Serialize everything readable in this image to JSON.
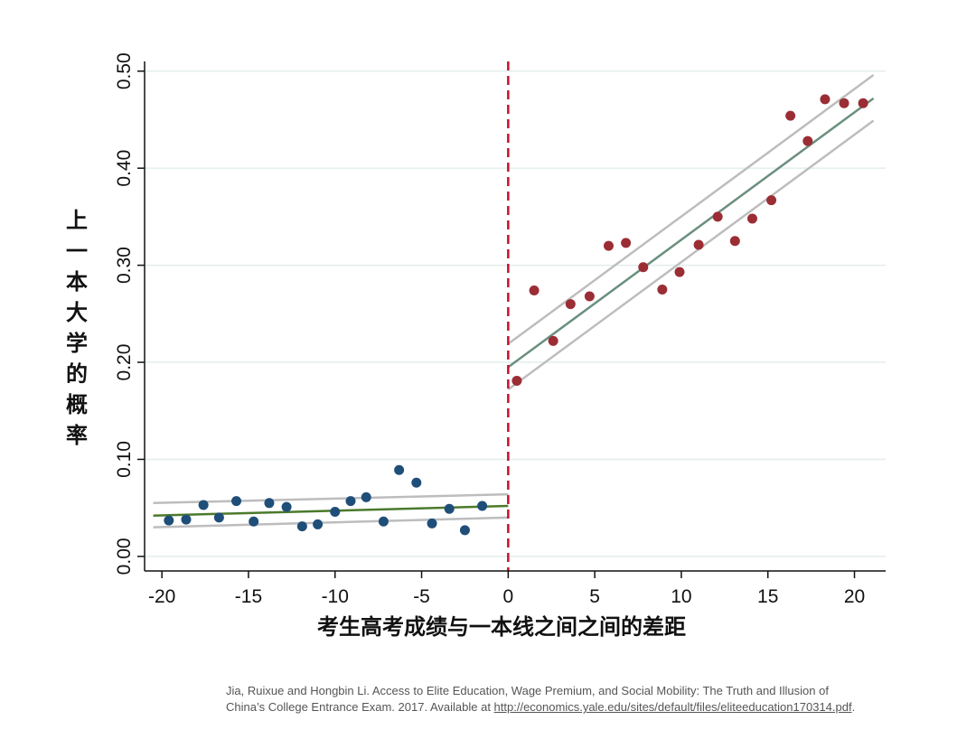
{
  "chart_data": {
    "type": "scatter",
    "title": "",
    "xlabel": "考生高考成绩与一本线之间之间的差距",
    "ylabel": "上一本大学的概率",
    "xlim": [
      -21,
      21.8
    ],
    "ylim": [
      -0.015,
      0.51
    ],
    "x_ticks": [
      -20,
      -15,
      -10,
      -5,
      0,
      5,
      10,
      15,
      20
    ],
    "x_tick_labels": [
      "-20",
      "-15",
      "-10",
      "-5",
      "0",
      "5",
      "10",
      "15",
      "20"
    ],
    "y_ticks": [
      0,
      0.1,
      0.2,
      0.3,
      0.4,
      0.5
    ],
    "y_tick_labels": [
      "0.00",
      "0.10",
      "0.20",
      "0.30",
      "0.40",
      "0.50"
    ],
    "grid": true,
    "cutoff_x": 0,
    "colors": {
      "below": "#1f4e79",
      "above": "#9b2d35",
      "fit_below": "#4b7a2c",
      "fit_above": "#6b8f7e",
      "ci": "#bdbdbd",
      "cutoff": "#c8102e",
      "grid": "#e3eeee"
    },
    "series": [
      {
        "points": [
          [
            -19.6,
            0.037
          ],
          [
            -18.6,
            0.038
          ],
          [
            -17.6,
            0.053
          ],
          [
            -16.7,
            0.04
          ],
          [
            -15.7,
            0.057
          ],
          [
            -14.7,
            0.036
          ],
          [
            -13.8,
            0.055
          ],
          [
            -12.8,
            0.051
          ],
          [
            -11.9,
            0.031
          ],
          [
            -11.0,
            0.033
          ],
          [
            -10.0,
            0.046
          ],
          [
            -9.1,
            0.057
          ],
          [
            -8.2,
            0.061
          ],
          [
            -7.2,
            0.036
          ],
          [
            -6.3,
            0.089
          ],
          [
            -5.3,
            0.076
          ],
          [
            -4.4,
            0.034
          ],
          [
            -3.4,
            0.049
          ],
          [
            -2.5,
            0.027
          ],
          [
            -1.5,
            0.052
          ]
        ]
      },
      {
        "points": [
          [
            0.5,
            0.181
          ],
          [
            1.5,
            0.274
          ],
          [
            2.6,
            0.222
          ],
          [
            3.6,
            0.26
          ],
          [
            4.7,
            0.268
          ],
          [
            5.8,
            0.32
          ],
          [
            6.8,
            0.323
          ],
          [
            7.8,
            0.298
          ],
          [
            8.9,
            0.275
          ],
          [
            9.9,
            0.293
          ],
          [
            11.0,
            0.321
          ],
          [
            12.1,
            0.35
          ],
          [
            13.1,
            0.325
          ],
          [
            14.1,
            0.348
          ],
          [
            15.2,
            0.367
          ],
          [
            16.3,
            0.454
          ],
          [
            17.3,
            0.428
          ],
          [
            18.3,
            0.471
          ],
          [
            19.4,
            0.467
          ],
          [
            20.5,
            0.467
          ]
        ]
      }
    ],
    "fit_lines": [
      {
        "x": [
          -20.5,
          0
        ],
        "y": [
          0.042,
          0.052
        ],
        "ci_upper": [
          0.055,
          0.064
        ],
        "ci_lower": [
          0.03,
          0.04
        ]
      },
      {
        "x": [
          0,
          21.1
        ],
        "y": [
          0.195,
          0.472
        ],
        "ci_upper": [
          0.219,
          0.496
        ],
        "ci_lower": [
          0.172,
          0.449
        ]
      }
    ]
  },
  "citation": {
    "text": "Jia, Ruixue and Hongbin Li. Access to Elite Education, Wage Premium, and Social Mobility: The Truth and Illusion of China’s College Entrance Exam. 2017. Available at ",
    "link": "http://economics.yale.edu/sites/default/files/eliteeducation170314.pdf",
    "end": "."
  }
}
